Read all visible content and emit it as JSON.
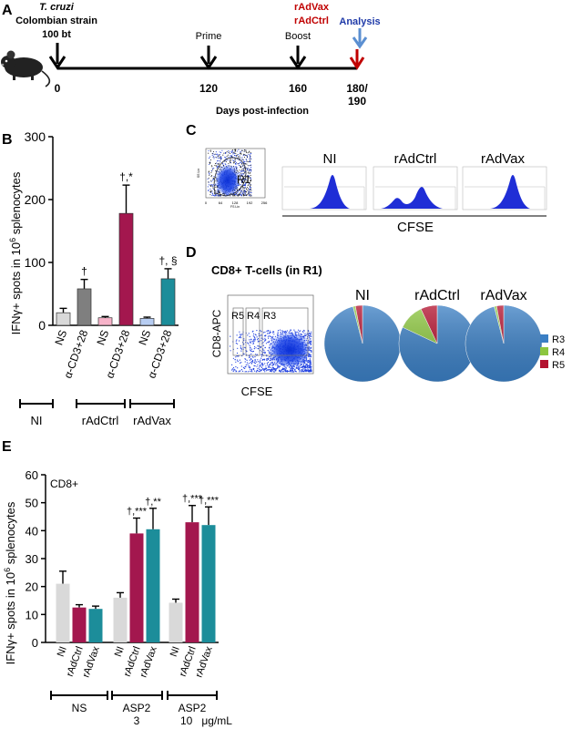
{
  "panel_a": {
    "label": "A",
    "strain_species": "T. cruzi",
    "strain_name": "Colombian strain",
    "strain_dose": "100 bt",
    "vaccine_1": "rAdVax",
    "vaccine_2": "rAdCtrl",
    "prime": "Prime",
    "boost": "Boost",
    "analysis": "Analysis",
    "day_0": "0",
    "day_120": "120",
    "day_160": "160",
    "day_180": "180/",
    "day_190": "190",
    "axis_label": "Days post-infection",
    "colors": {
      "vaccine": "#c00000",
      "analysis": "#1f3aa8",
      "arrow_blue": "#5b8fd1",
      "arrow_red": "#c00000"
    }
  },
  "panel_b": {
    "label": "B",
    "ylabel_main": "IFNγ+ spots in 10",
    "ylabel_sup": "6",
    "ylabel_tail": " splenocytes",
    "groups": [
      "NI",
      "rAdCtrl",
      "rAdVax"
    ],
    "chart_data": {
      "type": "bar",
      "categories": [
        "NS",
        "α-CD3+28",
        "NS",
        "α-CD3+28",
        "NS",
        "α-CD3+28"
      ],
      "series": [
        {
          "values": [
            20,
            58,
            12,
            178,
            11,
            74
          ],
          "errors": [
            7,
            15,
            2,
            45,
            2,
            16
          ]
        }
      ],
      "colors": [
        "#d9d9d9",
        "#7f7f7f",
        "#f7b3c9",
        "#a3174e",
        "#b7cdf2",
        "#1c8d9a"
      ],
      "annotations": [
        "",
        "†",
        "",
        "†,*",
        "",
        "†, §"
      ],
      "ylim": [
        0,
        300
      ],
      "yticks": [
        0,
        100,
        200,
        300
      ]
    }
  },
  "panel_c": {
    "label": "C",
    "gate": "R1",
    "scatter_ticks_x": [
      "0",
      "64",
      "128",
      "192",
      "256"
    ],
    "scatter_ylabel": "SS Lin",
    "scatter_xlabel": "FS Lin",
    "histogram_titles": [
      "NI",
      "rAdCtrl",
      "rAdVax"
    ],
    "xlabel": "CFSE"
  },
  "panel_d": {
    "label": "D",
    "title": "CD8+ T-cells (in R1)",
    "ylabel": "CD8-APC",
    "xlabel": "CFSE",
    "gates": [
      "R5",
      "R4",
      "R3"
    ],
    "pie_titles": [
      "NI",
      "rAdCtrl",
      "rAdVax"
    ],
    "chart_data": {
      "type": "pie",
      "pies": [
        {
          "name": "NI",
          "values": [
            96,
            1,
            3
          ]
        },
        {
          "name": "rAdCtrl",
          "values": [
            82,
            11,
            7
          ]
        },
        {
          "name": "rAdVax",
          "values": [
            96,
            1,
            3
          ]
        }
      ],
      "legend": [
        "R3",
        "R4",
        "R5"
      ],
      "colors": [
        "#3b7fc4",
        "#8cc63f",
        "#b3112e"
      ],
      "legend_position": "right"
    }
  },
  "panel_e": {
    "label": "E",
    "subset": "CD8+",
    "ylabel_main": "IFNγ+ spots in 10",
    "ylabel_sup": "6",
    "ylabel_tail": " splenocytes",
    "group_labels": [
      "NS",
      "ASP2",
      "ASP2"
    ],
    "group_sub": [
      "",
      "3",
      "10   μg/mL"
    ],
    "chart_data": {
      "type": "bar",
      "categories": [
        "NS",
        "ASP2 3",
        "ASP2 10"
      ],
      "x_labels": [
        "NI",
        "rAdCtrl",
        "rAdVax"
      ],
      "series": [
        {
          "name": "NI",
          "values": [
            21,
            16,
            14.2
          ],
          "errors": [
            4.5,
            1.8,
            1.3
          ]
        },
        {
          "name": "rAdCtrl",
          "values": [
            12.5,
            39,
            43
          ],
          "errors": [
            1,
            5.5,
            6
          ]
        },
        {
          "name": "rAdVax",
          "values": [
            12,
            40.5,
            42
          ],
          "errors": [
            1,
            7.5,
            6.5
          ]
        }
      ],
      "colors": [
        "#d9d9d9",
        "#a3174e",
        "#1c8d9a"
      ],
      "annotations": [
        [
          "",
          "",
          ""
        ],
        [
          "",
          "†,***",
          "†,**"
        ],
        [
          "",
          "†,***",
          "†,***"
        ]
      ],
      "ylim": [
        0,
        60
      ],
      "yticks": [
        0,
        10,
        20,
        30,
        40,
        50,
        60
      ]
    }
  }
}
